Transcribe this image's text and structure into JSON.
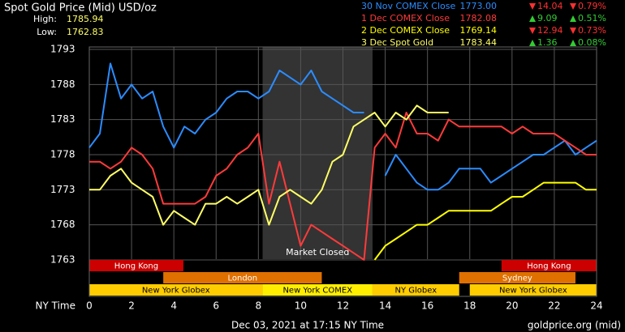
{
  "chart_data": {
    "type": "line",
    "title": "Spot Gold Price (Mid) USD/oz",
    "high_label": "High:",
    "high": "1785.94",
    "low_label": "Low:",
    "low": "1762.83",
    "x_axis_label": "NY Time",
    "footer_left": "Dec 03, 2021 at 17:15 NY Time",
    "footer_right": "goldprice.org (mid)",
    "xlim": [
      0,
      24
    ],
    "xticks": [
      0,
      2,
      4,
      6,
      8,
      10,
      12,
      14,
      16,
      18,
      20,
      22,
      24
    ],
    "ylim": [
      1757.8,
      1793.35
    ],
    "yticks": [
      1763,
      1768,
      1773,
      1778,
      1783,
      1788,
      1793
    ],
    "grid": true,
    "closed_band": {
      "label": "Market Closed",
      "start": 8.2,
      "end": 13.4
    },
    "sessions": [
      {
        "label": "Hong Kong",
        "start": 0,
        "end": 4.45,
        "lane": 0,
        "color": "#cc0000"
      },
      {
        "label": "Hong Kong",
        "start": 19.5,
        "end": 24,
        "lane": 0,
        "color": "#cc0000"
      },
      {
        "label": "London",
        "start": 3.5,
        "end": 11,
        "lane": 1,
        "color": "#e07000"
      },
      {
        "label": "Sydney",
        "start": 17.5,
        "end": 23,
        "lane": 1,
        "color": "#e07000"
      },
      {
        "label": "New York Globex",
        "start": 0,
        "end": 8.2,
        "lane": 2,
        "color": "#ffcc00"
      },
      {
        "label": "New York COMEX",
        "start": 8.2,
        "end": 13.4,
        "lane": 2,
        "color": "#ffee00"
      },
      {
        "label": "NY Globex",
        "start": 13.4,
        "end": 17.5,
        "lane": 2,
        "color": "#ffcc00"
      },
      {
        "label": "New York Globex",
        "start": 18,
        "end": 24,
        "lane": 2,
        "color": "#ffcc00"
      }
    ],
    "x": [
      0,
      0.5,
      1,
      1.5,
      2,
      2.5,
      3,
      3.5,
      4,
      4.5,
      5,
      5.5,
      6,
      6.5,
      7,
      7.5,
      8,
      8.5,
      9,
      9.5,
      10,
      10.5,
      11,
      11.5,
      12,
      12.5,
      13,
      13.5,
      14,
      14.5,
      15,
      15.5,
      16,
      16.5,
      17,
      17.5,
      18,
      18.5,
      19,
      19.5,
      20,
      20.5,
      21,
      21.5,
      22,
      22.5,
      23,
      23.5,
      24
    ],
    "series": [
      {
        "name": "30 Nov COMEX Close",
        "color": "#2b8cff",
        "close": "1773.00",
        "change": "14.04",
        "change_pct": "0.79%",
        "direction": "down",
        "values": [
          1779,
          1781,
          1791,
          1786,
          1788,
          1786,
          1787,
          1782,
          1779,
          1782,
          1781,
          1783,
          1784,
          1786,
          1787,
          1787,
          1786,
          1787,
          1790,
          1789,
          1788,
          1790,
          1787,
          1786,
          1785,
          1784,
          1784,
          null,
          1775,
          1778,
          1776,
          1774,
          1773,
          1773,
          1774,
          1776,
          1776,
          1776,
          1774,
          1775,
          1776,
          1777,
          1778,
          1778,
          1779,
          1780,
          1778,
          1779,
          1780
        ]
      },
      {
        "name": "1 Dec COMEX Close",
        "color": "#ff3a3a",
        "close": "1782.08",
        "change": "9.09",
        "change_pct": "0.51%",
        "direction": "up",
        "values": [
          1777,
          1777,
          1776,
          1777,
          1779,
          1778,
          1776,
          1771,
          1771,
          1771,
          1771,
          1772,
          1775,
          1776,
          1778,
          1779,
          1781,
          1771,
          1777,
          1771,
          1765,
          1768,
          1767,
          1766,
          1765,
          1764,
          1763,
          1779,
          1781,
          1779,
          1784,
          1781,
          1781,
          1780,
          1783,
          1782,
          1782,
          1782,
          1782,
          1782,
          1781,
          1782,
          1781,
          1781,
          1781,
          1780,
          1779,
          1778,
          1778
        ]
      },
      {
        "name": "2 Dec COMEX Close",
        "color": "#ffff00",
        "close": "1769.14",
        "change": "12.94",
        "change_pct": "0.73%",
        "direction": "down",
        "values": [
          null,
          null,
          null,
          null,
          null,
          null,
          null,
          null,
          null,
          null,
          null,
          null,
          null,
          null,
          null,
          null,
          null,
          null,
          null,
          null,
          null,
          null,
          null,
          null,
          null,
          null,
          null,
          1763,
          1765,
          1766,
          1767,
          1768,
          1768,
          1769,
          1770,
          1770,
          1770,
          1770,
          1770,
          1771,
          1772,
          1772,
          1773,
          1774,
          1774,
          1774,
          1774,
          1773,
          1773
        ]
      },
      {
        "name": "3 Dec Spot Gold",
        "color": "#ffff66",
        "close": "1783.44",
        "change": "1.36",
        "change_pct": "0.08%",
        "direction": "up",
        "values": [
          1773,
          1773,
          1775,
          1776,
          1774,
          1773,
          1772,
          1768,
          1770,
          1769,
          1768,
          1771,
          1771,
          1772,
          1771,
          1772,
          1773,
          1768,
          1772,
          1773,
          1772,
          1771,
          1773,
          1777,
          1778,
          1782,
          1783,
          1784,
          1782,
          1784,
          1783,
          1785,
          1784,
          1784,
          1784,
          null,
          null,
          null,
          null,
          null,
          null,
          null,
          null,
          null,
          null,
          null,
          null,
          null,
          null
        ]
      }
    ]
  }
}
